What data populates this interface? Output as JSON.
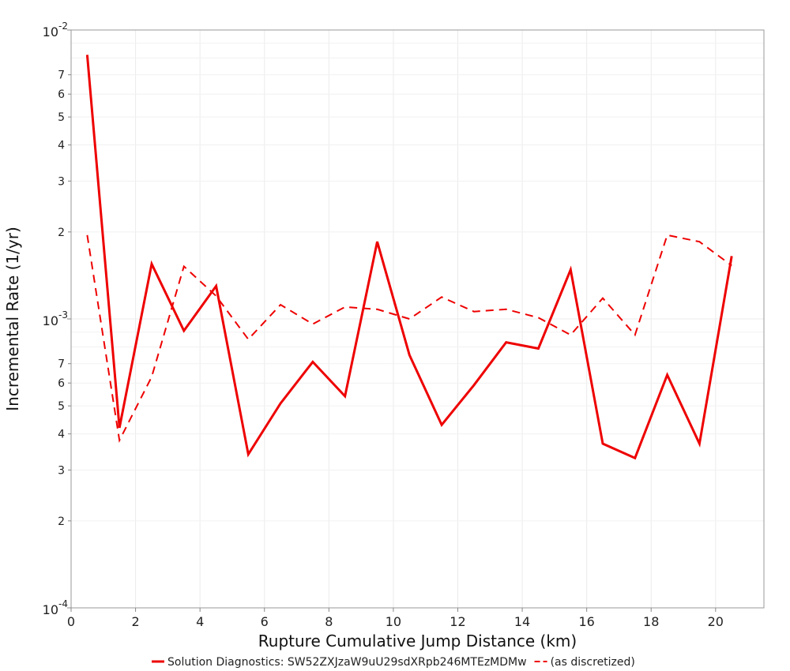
{
  "chart_data": {
    "type": "line",
    "xlabel": "Rupture Cumulative Jump Distance (km)",
    "ylabel": "Incremental Rate (1/yr)",
    "xlim": [
      0,
      21.5
    ],
    "ylim": [
      0.0001,
      0.01
    ],
    "yscale": "log",
    "grid": true,
    "legend_position": "bottom-center",
    "x_ticks": [
      "0",
      "2",
      "4",
      "6",
      "8",
      "10",
      "12",
      "14",
      "16",
      "18",
      "20"
    ],
    "y_major_ticks": [
      {
        "base": "10",
        "exp": "-2"
      },
      {
        "base": "10",
        "exp": "-3"
      },
      {
        "base": "10",
        "exp": "-4"
      }
    ],
    "y_minor_labels": [
      "7",
      "6",
      "5",
      "4",
      "3",
      "2"
    ],
    "x": [
      0.5,
      1.5,
      2.5,
      3.5,
      4.5,
      5.5,
      6.5,
      7.5,
      8.5,
      9.5,
      10.5,
      11.5,
      12.5,
      13.5,
      14.5,
      15.5,
      16.5,
      17.5,
      18.5,
      19.5,
      20.5
    ],
    "series": [
      {
        "name": "Solution Diagnostics: SW52ZXJzaW9uU29sdXRpb246MTEzMDMw",
        "color": "#ee0000",
        "style": "solid",
        "values": [
          0.0082,
          0.00042,
          0.00155,
          0.00091,
          0.0013,
          0.00034,
          0.00051,
          0.00071,
          0.00054,
          0.00185,
          0.00075,
          0.00043,
          0.00059,
          0.00083,
          0.00079,
          0.00148,
          0.00037,
          0.00033,
          0.00064,
          0.00037,
          0.00165
        ]
      },
      {
        "name": "(as discretized)",
        "color": "#ee0000",
        "style": "dashed",
        "values": [
          0.00195,
          0.00038,
          0.00063,
          0.00152,
          0.0012,
          0.00085,
          0.00112,
          0.00096,
          0.0011,
          0.00108,
          0.001,
          0.00119,
          0.00106,
          0.00108,
          0.00101,
          0.00088,
          0.00118,
          0.00088,
          0.00195,
          0.00185,
          0.00153
        ]
      }
    ]
  }
}
